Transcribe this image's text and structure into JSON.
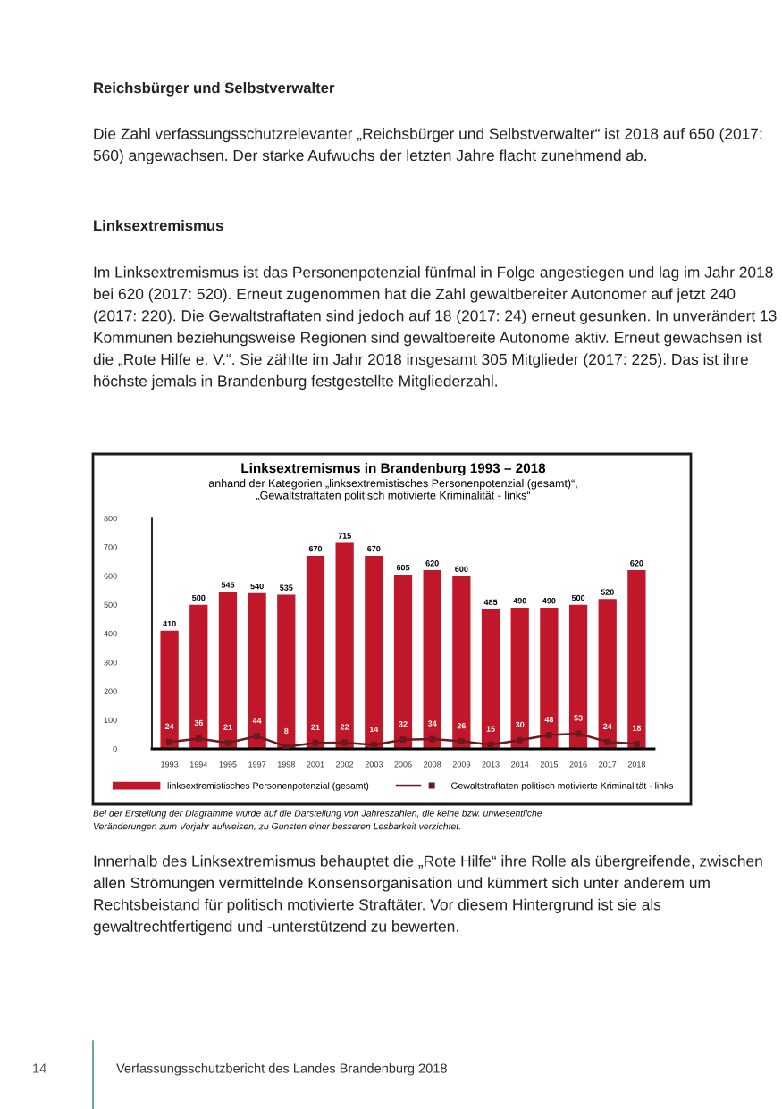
{
  "chart_data": {
    "type": "bar",
    "title": "Linksextremismus in Brandenburg 1993 – 2018",
    "subtitle": "anhand der Kategorien „linksextremistisches Personenpotenzial (gesamt)“,\n„Gewaltstraftaten politisch motivierte Kriminalität - links“",
    "categories": [
      "1993",
      "1994",
      "1995",
      "1997",
      "1998",
      "2001",
      "2002",
      "2003",
      "2006",
      "2008",
      "2009",
      "2013",
      "2014",
      "2015",
      "2016",
      "2017",
      "2018"
    ],
    "series": [
      {
        "name": "linksextremistisches Personenpotenzial (gesamt)",
        "color": "#c0182a",
        "values": [
          410,
          500,
          545,
          540,
          535,
          670,
          715,
          670,
          605,
          620,
          600,
          485,
          490,
          490,
          500,
          520,
          620
        ]
      },
      {
        "name": "Gewaltstraftaten politisch motivierte Kriminalität - links",
        "type": "line",
        "color": "#6b1a1f",
        "marker": "square",
        "values": [
          24,
          36,
          21,
          44,
          8,
          21,
          22,
          14,
          32,
          34,
          26,
          15,
          30,
          48,
          53,
          24,
          18
        ]
      }
    ],
    "ylim": [
      0,
      800
    ],
    "yticks": [
      0,
      100,
      200,
      300,
      400,
      500,
      600,
      700,
      800
    ],
    "data_labels": true,
    "grid": false,
    "legend": "bottom",
    "annotations": [
      "Reichsbürger und Selbstverwalter",
      "Die Zahl verfassungsschutzrelevanter „Reichsbürger und Selbstverwalter“ ist 2018 auf 650 (2017: 560) angewachsen. Der starke Aufwuchs der letzten Jahre flacht zunehmend ab.",
      "Linksextremismus",
      "Im Linksextremismus ist das Personenpotenzial fünfmal in Folge angestiegen und lag im Jahr 2018 bei 620 (2017: 520). Erneut zugenommen hat die Zahl gewaltbereiter Autonomer auf jetzt 240 (2017: 220). Die Gewaltstraftaten sind jedoch auf 18 (2017: 24) erneut gesunken. In unverändert 13 Kommunen beziehungsweise Regionen sind gewaltbereite Autonome aktiv. Erneut gewachsen ist die „Rote Hilfe e. V.“. Sie zählte im Jahr 2018 insgesamt 305 Mitglieder (2017: 225). Das ist ihre höchste jemals in Brandenburg festgestellte Mitgliederzahl.",
      "Bei der Erstellung der Diagramme wurde auf die Darstellung von Jahreszahlen, die keine bzw. unwesentliche\nVeränderungen zum Vorjahr aufweisen, zu Gunsten einer besseren Lesbarkeit verzichtet.",
      "Innerhalb des Linksextremismus behauptet die „Rote Hilfe“ ihre Rolle als übergreifende, zwischen allen Strömungen vermittelnde Konsensorganisation und kümmert sich unter anderem um Rechtsbeistand für politisch motivierte Straftäter. Vor diesem Hintergrund ist sie als gewaltrechtfertigend und -unterstützend zu bewerten.",
      "14",
      "Verfassungsschutzbericht des Landes Brandenburg 2018"
    ]
  }
}
